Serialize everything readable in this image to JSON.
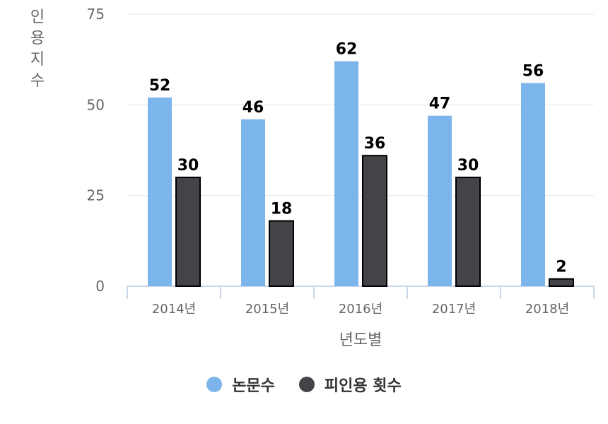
{
  "chart_data": {
    "type": "bar",
    "categories": [
      "2014년",
      "2015년",
      "2016년",
      "2017년",
      "2018년"
    ],
    "series": [
      {
        "name": "논문수",
        "values": [
          52,
          46,
          62,
          47,
          56
        ],
        "color": "#7cb5ec"
      },
      {
        "name": "피인용 횟수",
        "values": [
          30,
          18,
          36,
          30,
          2
        ],
        "color": "#434348"
      }
    ],
    "xlabel": "년도별",
    "ylabel": "인용지수",
    "ylim": [
      0,
      75
    ],
    "yticks": [
      0,
      25,
      50,
      75
    ],
    "grid": true,
    "legend": "bottom-center",
    "data_labels": true
  }
}
